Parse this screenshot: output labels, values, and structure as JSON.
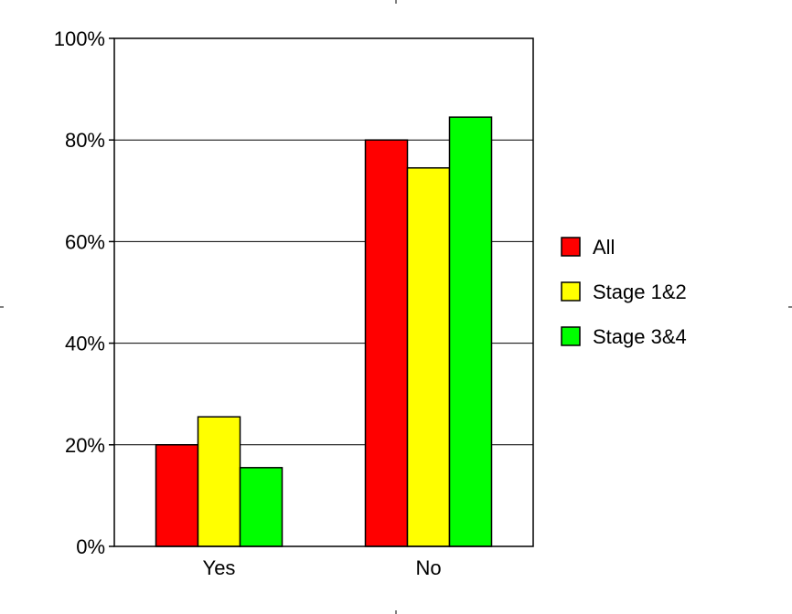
{
  "chart_data": {
    "type": "bar",
    "categories": [
      "Yes",
      "No"
    ],
    "series": [
      {
        "name": "All",
        "color": "#ff0000",
        "values": [
          20,
          80
        ]
      },
      {
        "name": "Stage 1&2",
        "color": "#ffff00",
        "values": [
          25.5,
          74.5
        ]
      },
      {
        "name": "Stage 3&4",
        "color": "#00ff00",
        "values": [
          15.5,
          84.5
        ]
      }
    ],
    "title": "",
    "xlabel": "",
    "ylabel": "",
    "ylim": [
      0,
      100
    ],
    "yticks": [
      "0%",
      "20%",
      "40%",
      "60%",
      "80%",
      "100%"
    ],
    "grid": true,
    "legend_position": "right"
  }
}
